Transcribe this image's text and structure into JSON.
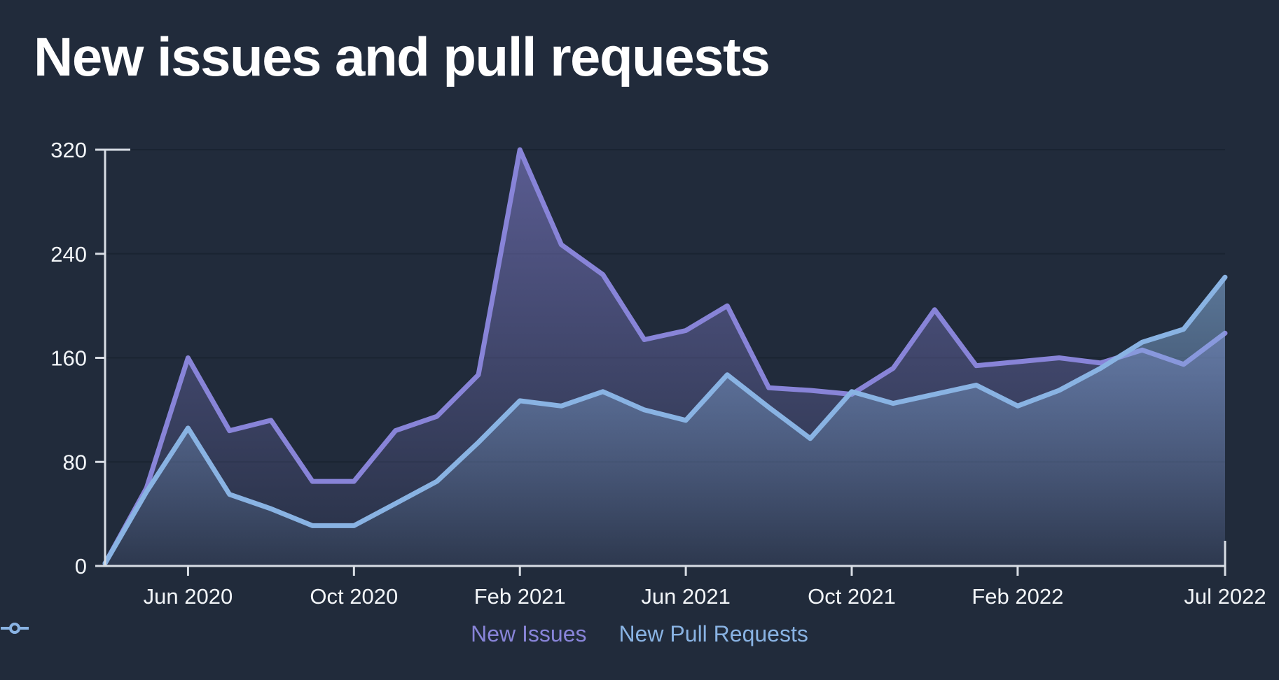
{
  "title": "New issues and pull requests",
  "legend": {
    "items": [
      {
        "label": "New Issues",
        "color": "#8884d8",
        "icon": "line-with-circle-marker"
      },
      {
        "label": "New Pull Requests",
        "color": "#89b3e3",
        "icon": "line-with-circle-marker"
      }
    ],
    "position": "bottom-center"
  },
  "colors": {
    "background": "#212b3b",
    "gridline": "#1a2432",
    "axis": "#d8dde4",
    "tick_label": "#f2f5f8",
    "title": "#ffffff",
    "issues": "#8884d8",
    "pull_requests": "#89b3e3"
  },
  "chart_data": {
    "type": "area",
    "title": "New issues and pull requests",
    "x": [
      "Apr 2020",
      "May 2020",
      "Jun 2020",
      "Jul 2020",
      "Aug 2020",
      "Sep 2020",
      "Oct 2020",
      "Nov 2020",
      "Dec 2020",
      "Jan 2021",
      "Feb 2021",
      "Mar 2021",
      "Apr 2021",
      "May 2021",
      "Jun 2021",
      "Jul 2021",
      "Aug 2021",
      "Sep 2021",
      "Oct 2021",
      "Nov 2021",
      "Dec 2021",
      "Jan 2022",
      "Feb 2022",
      "Mar 2022",
      "Apr 2022",
      "May 2022",
      "Jun 2022",
      "Jul 2022"
    ],
    "series": [
      {
        "name": "New Issues",
        "color": "#8884d8",
        "values": [
          2,
          60,
          160,
          104,
          112,
          65,
          65,
          104,
          115,
          147,
          320,
          247,
          224,
          174,
          181,
          200,
          137,
          135,
          132,
          152,
          197,
          154,
          157,
          160,
          156,
          166,
          155,
          179
        ]
      },
      {
        "name": "New Pull Requests",
        "color": "#89b3e3",
        "values": [
          2,
          57,
          106,
          55,
          44,
          31,
          31,
          48,
          65,
          95,
          127,
          123,
          134,
          120,
          112,
          147,
          122,
          98,
          134,
          125,
          132,
          139,
          123,
          135,
          152,
          172,
          182,
          222
        ]
      }
    ],
    "x_tick_labels": [
      "Jun 2020",
      "Oct 2020",
      "Feb 2021",
      "Jun 2021",
      "Oct 2021",
      "Feb 2022",
      "Jul 2022"
    ],
    "y_ticks": [
      0,
      80,
      160,
      240,
      320
    ],
    "ylim": [
      0,
      320
    ],
    "xlabel": "",
    "ylabel": "",
    "grid": "horizontal",
    "legend_position": "bottom"
  }
}
